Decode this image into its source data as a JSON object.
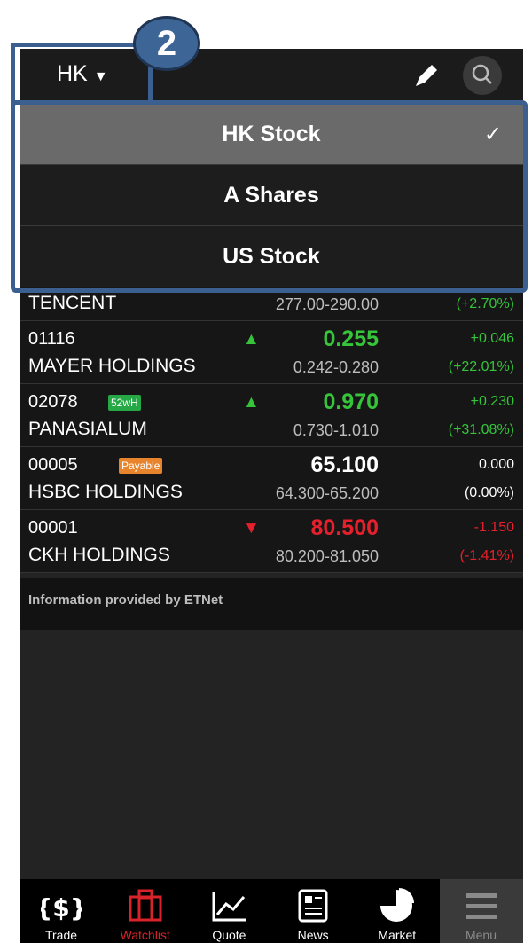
{
  "callout": "2",
  "header": {
    "region": "HK"
  },
  "dropdown": {
    "items": [
      "HK Stock",
      "A Shares",
      "US Stock"
    ],
    "selected": 0
  },
  "stocks": [
    {
      "name": "TENCENT",
      "range": "277.00-290.00",
      "pct": "(+2.70%)",
      "color": "#35c43a"
    },
    {
      "code": "01116",
      "name": "MAYER HOLDINGS",
      "price": "0.255",
      "change": "+0.046",
      "range": "0.242-0.280",
      "pct": "(+22.01%)",
      "trend": "up",
      "color": "#35c43a"
    },
    {
      "code": "02078",
      "badge": "52wH",
      "badge_color": "#25a845",
      "name": "PANASIALUM",
      "price": "0.970",
      "change": "+0.230",
      "range": "0.730-1.010",
      "pct": "(+31.08%)",
      "trend": "up",
      "color": "#35c43a"
    },
    {
      "code": "00005",
      "badge": "Payable",
      "badge_color": "#e8842c",
      "name": "HSBC HOLDINGS",
      "price": "65.100",
      "change": "0.000",
      "range": "64.300-65.200",
      "pct": "(0.00%)",
      "color": "#ffffff"
    },
    {
      "code": "00001",
      "name": "CKH HOLDINGS",
      "price": "80.500",
      "change": "-1.150",
      "range": "80.200-81.050",
      "pct": "(-1.41%)",
      "trend": "down",
      "color": "#e5202c"
    }
  ],
  "footer_note": "Information provided by ETNet",
  "nav": [
    {
      "label": "Trade",
      "color": "#ffffff"
    },
    {
      "label": "Watchlist",
      "color": "#d8232a"
    },
    {
      "label": "Quote",
      "color": "#ffffff"
    },
    {
      "label": "News",
      "color": "#ffffff"
    },
    {
      "label": "Market",
      "color": "#ffffff"
    },
    {
      "label": "Menu",
      "color": "#8a8a8a"
    }
  ]
}
